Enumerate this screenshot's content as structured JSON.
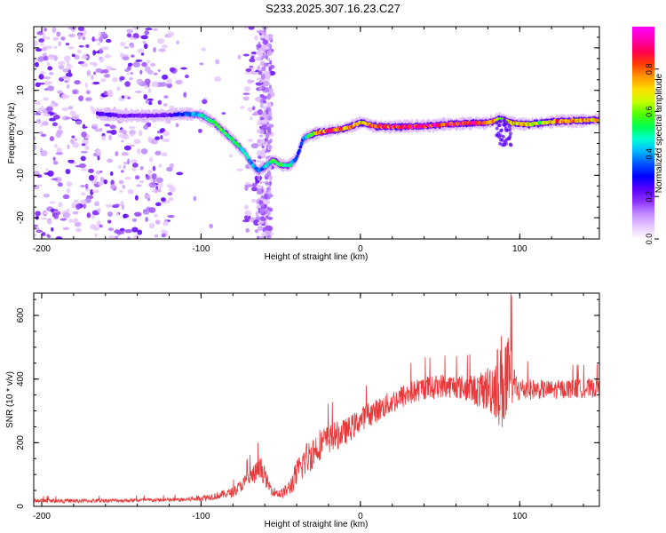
{
  "title": "S233.2025.307.16.23.C27",
  "chart_data": [
    {
      "type": "heatmap",
      "name": "spectrogram",
      "xlabel": "Height of straight line (km)",
      "ylabel": "Frequency (Hz)",
      "xlim": [
        -205,
        150
      ],
      "ylim": [
        -25,
        25
      ],
      "xticks": [
        -200,
        -100,
        0,
        100
      ],
      "yticks": [
        -20,
        -10,
        0,
        10,
        20
      ],
      "colorbar": {
        "label": "Normalized spectral amplitude",
        "range": [
          0,
          1
        ],
        "ticks": [
          "0.0",
          "0.2",
          "0.4",
          "0.6",
          "0.8"
        ],
        "colors": [
          "#ffffff",
          "#e6c8ff",
          "#c38cff",
          "#8c32ff",
          "#5a00ff",
          "#0000ff",
          "#0050ff",
          "#00b4ff",
          "#00ffd2",
          "#00ff50",
          "#50ff00",
          "#c8ff00",
          "#ffdc00",
          "#ff9600",
          "#ff3c00",
          "#ff0050",
          "#ff00b4",
          "#ff00ff"
        ]
      },
      "noise_region_x": [
        -205,
        -55
      ],
      "ridge": {
        "x": [
          -165,
          -150,
          -135,
          -120,
          -110,
          -100,
          -92,
          -85,
          -78,
          -72,
          -68,
          -64,
          -60,
          -55,
          -50,
          -45,
          -40,
          -36,
          -33,
          -28,
          -20,
          -10,
          -5,
          0,
          10,
          25,
          40,
          55,
          70,
          80,
          88,
          95,
          105,
          115,
          125,
          140,
          150
        ],
        "y": [
          4.5,
          4.0,
          4.0,
          4.2,
          4.5,
          4.2,
          2.5,
          0,
          -2.5,
          -5,
          -7.5,
          -9,
          -8,
          -6.5,
          -7.5,
          -7.8,
          -6.0,
          -1.5,
          -0.8,
          0,
          0.4,
          1.0,
          1.6,
          2.5,
          1.5,
          1.4,
          1.6,
          2.0,
          2.3,
          2.3,
          3.3,
          2.3,
          2.0,
          2.4,
          2.7,
          2.9,
          3.0
        ],
        "amplitude": [
          0.25,
          0.2,
          0.2,
          0.22,
          0.35,
          0.45,
          0.5,
          0.55,
          0.5,
          0.45,
          0.4,
          0.35,
          0.4,
          0.55,
          0.55,
          0.5,
          0.3,
          0.35,
          0.5,
          0.7,
          0.85,
          0.8,
          0.75,
          0.7,
          0.8,
          0.9,
          0.9,
          0.85,
          0.88,
          0.85,
          0.6,
          0.75,
          0.7,
          0.6,
          0.8,
          0.75,
          0.7
        ]
      }
    },
    {
      "type": "line",
      "name": "snr",
      "xlabel": "Height of straight line (km)",
      "ylabel": "SNR (10 * v/v)",
      "xlim": [
        -205,
        150
      ],
      "ylim": [
        0,
        670
      ],
      "xticks": [
        -200,
        -100,
        0,
        100
      ],
      "yticks": [
        0,
        200,
        400,
        600
      ],
      "color": "#e8393a",
      "series": [
        {
          "name": "SNR",
          "x": [
            -205,
            -180,
            -160,
            -140,
            -120,
            -110,
            -100,
            -90,
            -80,
            -75,
            -70,
            -65,
            -62,
            -60,
            -58,
            -55,
            -50,
            -45,
            -40,
            -35,
            -30,
            -25,
            -20,
            -15,
            -10,
            -5,
            0,
            5,
            10,
            15,
            20,
            25,
            30,
            35,
            40,
            45,
            50,
            55,
            60,
            65,
            70,
            75,
            80,
            85,
            88,
            90,
            92,
            95,
            97,
            100,
            110,
            120,
            130,
            140,
            150
          ],
          "y": [
            18,
            17,
            18,
            19,
            20,
            21,
            26,
            33,
            45,
            65,
            85,
            108,
            118,
            95,
            70,
            48,
            38,
            55,
            100,
            145,
            170,
            198,
            210,
            222,
            232,
            250,
            272,
            290,
            300,
            315,
            328,
            342,
            352,
            362,
            374,
            372,
            380,
            378,
            378,
            372,
            368,
            362,
            370,
            382,
            390,
            400,
            395,
            385,
            372,
            368,
            368,
            366,
            370,
            370,
            372
          ],
          "noise": [
            6,
            6,
            6,
            6,
            6,
            7,
            10,
            12,
            15,
            20,
            28,
            35,
            38,
            30,
            22,
            15,
            15,
            25,
            45,
            55,
            55,
            50,
            45,
            45,
            42,
            40,
            38,
            38,
            38,
            38,
            38,
            38,
            38,
            38,
            38,
            38,
            38,
            38,
            38,
            40,
            45,
            55,
            75,
            110,
            150,
            180,
            150,
            100,
            60,
            40,
            30,
            30,
            30,
            30,
            30
          ]
        }
      ]
    }
  ]
}
